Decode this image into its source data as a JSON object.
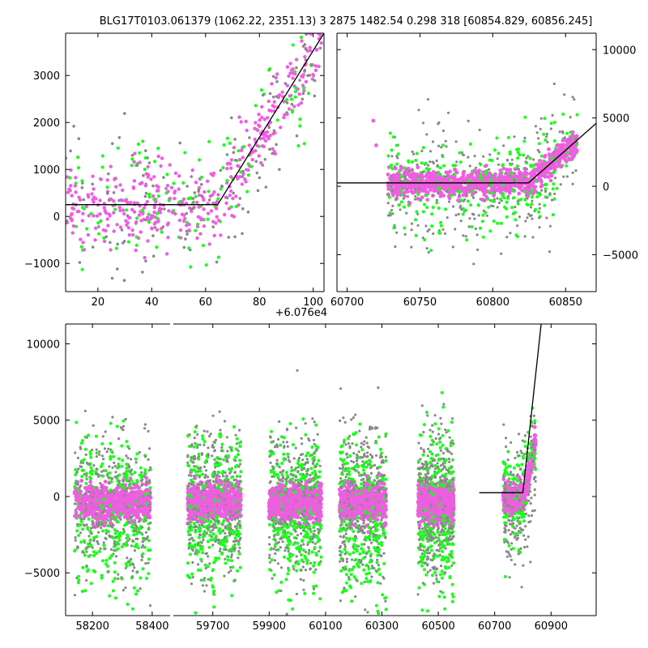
{
  "title": "BLG17T0103.061379 (1062.22, 2351.13)   3 2875 1482.54 0.298 318 [60854.829, 60856.245]",
  "colors": {
    "model": "#000000",
    "magenta": "#ee5ee0",
    "green": "#19ff19",
    "gray": "#888888"
  },
  "chart_data": [
    {
      "id": "top-left",
      "type": "scatter",
      "xlim": [
        8,
        104
      ],
      "ylim": [
        -1600,
        3900
      ],
      "x_offset_label": "+6.076e4",
      "xticks": [
        20,
        40,
        60,
        80,
        100
      ],
      "xtick_labels": [
        "20",
        "40",
        "60",
        "80",
        "100"
      ],
      "yticks": [
        -1000,
        0,
        1000,
        2000,
        3000
      ],
      "ytick_labels": [
        "−1000",
        "0",
        "1000",
        "2000",
        "3000"
      ],
      "model_line": [
        [
          8,
          250
        ],
        [
          64.5,
          250
        ],
        [
          104,
          3900
        ]
      ],
      "baseline": 0,
      "t0": 64.5,
      "slope": 92,
      "cloud_segments": [
        [
          8,
          49
        ],
        [
          50,
          104
        ]
      ]
    },
    {
      "id": "top-right",
      "type": "scatter",
      "xlim": [
        60693,
        60871
      ],
      "ylim": [
        -7700,
        11200
      ],
      "xticks": [
        60700,
        60750,
        60800,
        60850
      ],
      "xtick_labels": [
        "60700",
        "60750",
        "60800",
        "60850"
      ],
      "yticks": [
        -5000,
        0,
        5000,
        10000
      ],
      "ytick_labels": [
        "−5000",
        "0",
        "5000",
        "10000"
      ],
      "yaxis_side": "right",
      "model_line": [
        [
          60693,
          250
        ],
        [
          60824.5,
          250
        ],
        [
          60871,
          4600
        ]
      ],
      "baseline": 0,
      "t0": 60824.5,
      "slope": 92,
      "cloud_segments": [
        [
          60728,
          60858
        ]
      ]
    },
    {
      "id": "bottom",
      "type": "scatter",
      "ylim": [
        -7800,
        11300
      ],
      "yticks": [
        -5000,
        0,
        5000,
        10000
      ],
      "ytick_labels": [
        "−5000",
        "0",
        "5000",
        "10000"
      ],
      "subpanels": [
        {
          "xlim": [
            58110,
            58460
          ],
          "xticks": [
            58200,
            58400
          ],
          "xtick_labels": [
            "58200",
            "58400"
          ],
          "seasons": [
            [
              58140,
              58395
            ]
          ],
          "model_line": null
        },
        {
          "xlim": [
            59560,
            61060
          ],
          "xticks": [
            59700,
            59900,
            60100,
            60300,
            60500,
            60700,
            60900
          ],
          "xtick_labels": [
            "59700",
            "59900",
            "60100",
            "60300",
            "60500",
            "60700",
            "60900"
          ],
          "seasons": [
            [
              59610,
              59800
            ],
            [
              59900,
              60085
            ],
            [
              60150,
              60315
            ],
            [
              60428,
              60555
            ]
          ],
          "model_line": [
            [
              60645,
              250
            ],
            [
              60800,
              250
            ],
            [
              60865,
              11300
            ]
          ]
        }
      ],
      "late_season": [
        60730,
        60845
      ]
    }
  ]
}
